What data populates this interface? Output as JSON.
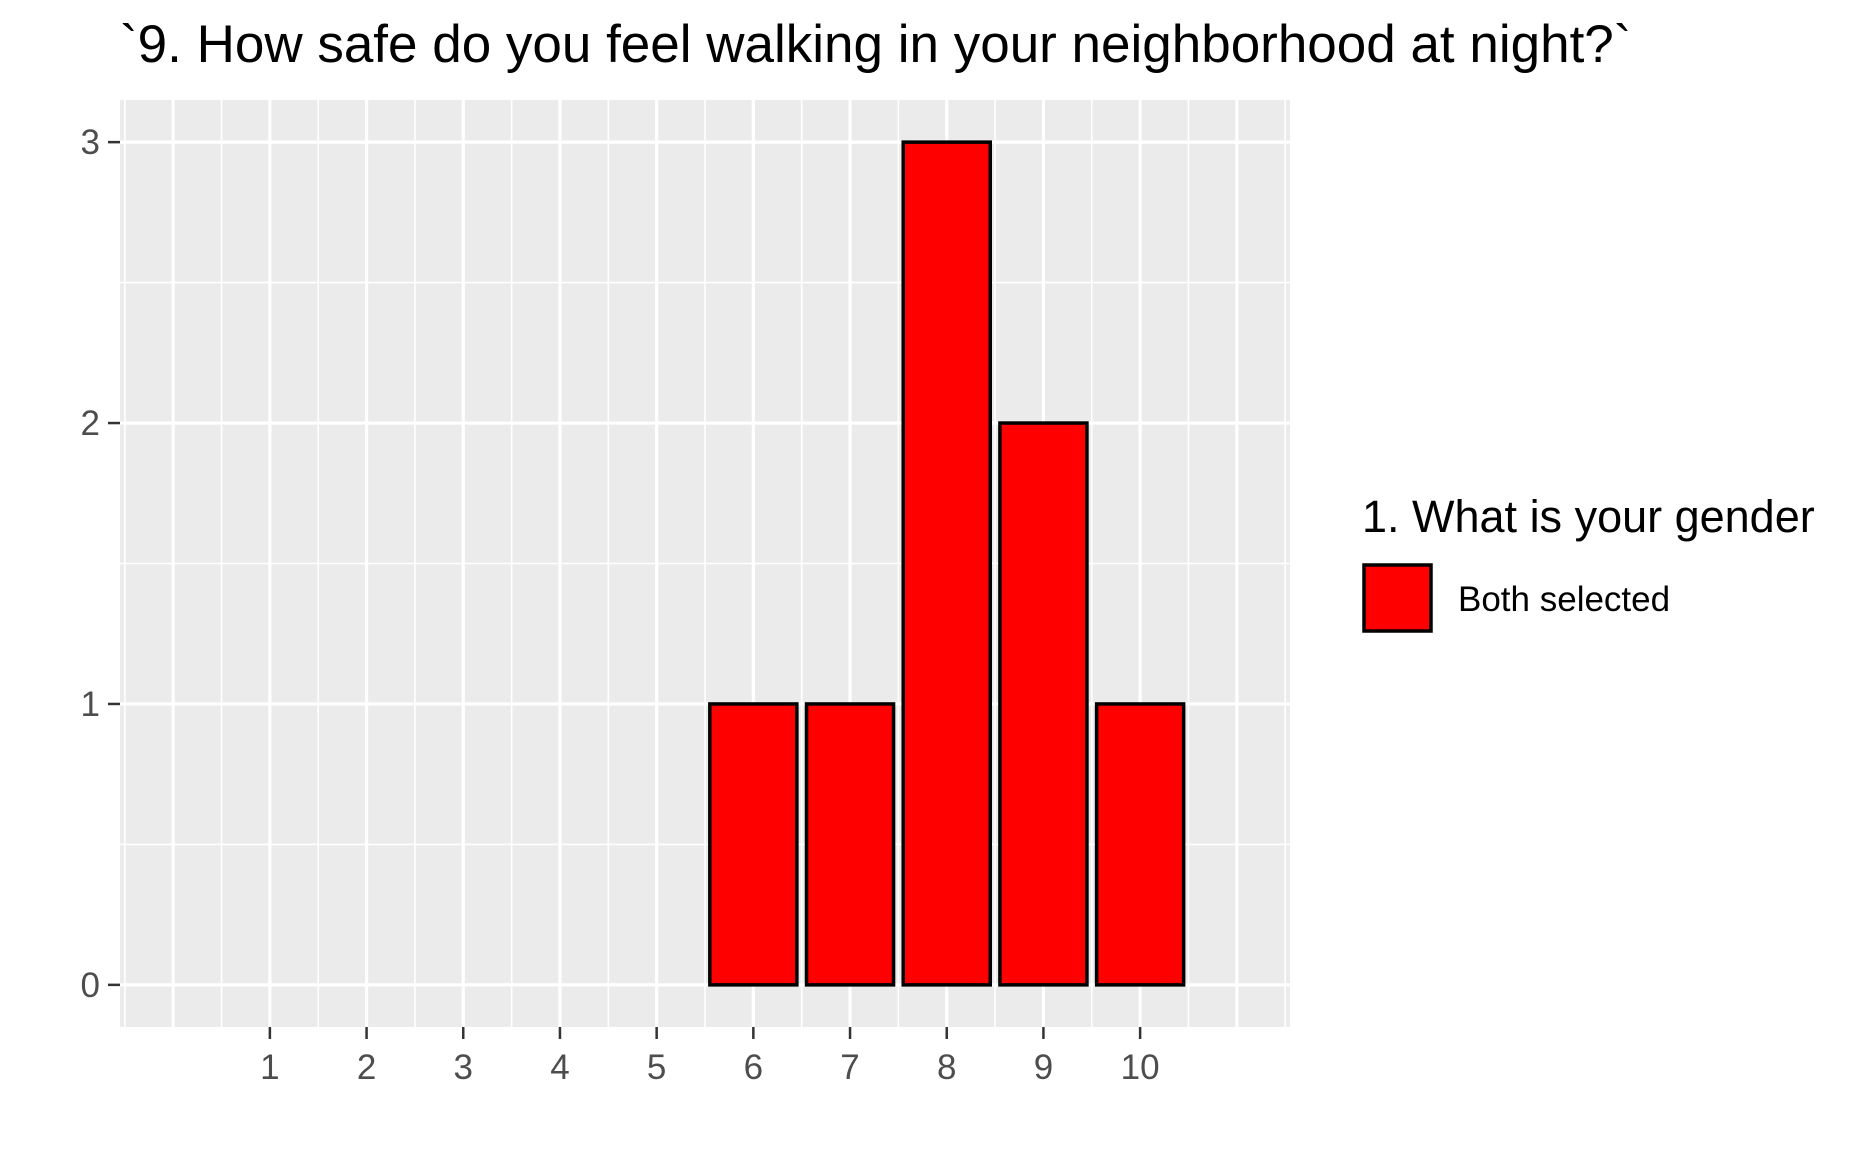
{
  "chart_data": {
    "type": "bar",
    "title": "`9. How safe do you feel walking in your neighborhood at night?`",
    "xlabel": "",
    "ylabel": "",
    "categories": [
      "1",
      "2",
      "3",
      "4",
      "5",
      "6",
      "7",
      "8",
      "9",
      "10"
    ],
    "series": [
      {
        "name": "Both selected",
        "values": [
          0,
          0,
          0,
          0,
          0,
          1,
          1,
          3,
          2,
          1
        ]
      }
    ],
    "xlim": [
      -0.55,
      11.55
    ],
    "ylim": [
      -0.15,
      3.15
    ],
    "yticks": [
      0,
      1,
      2,
      3
    ],
    "grid": true,
    "legend": {
      "title": "1. What is your gender",
      "position": "right"
    },
    "colors": {
      "bar_fill": "#ff0000",
      "bar_stroke": "#000000",
      "panel_background": "#ebebeb",
      "grid": "#ffffff",
      "tick_text": "#4d4d4d"
    }
  }
}
